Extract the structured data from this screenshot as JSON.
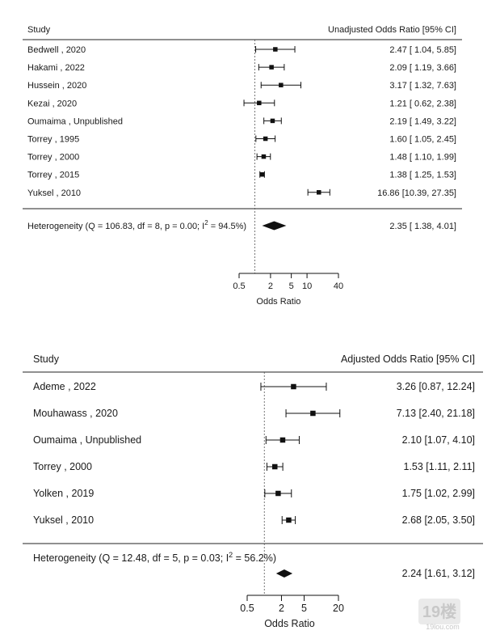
{
  "chart_data": [
    {
      "type": "forest",
      "header_study": "Study",
      "header_effect": "Unadjusted Odds Ratio [95% CI]",
      "xlabel": "Odds Ratio",
      "x_scale": "log",
      "ticks": [
        "0.5",
        "2",
        "5",
        "10",
        "40"
      ],
      "tick_values": [
        0.5,
        2,
        5,
        10,
        40
      ],
      "reference_line": 1,
      "studies": [
        {
          "label": "Bedwell , 2020",
          "or": 2.47,
          "lo": 1.04,
          "hi": 5.85,
          "text": "2.47 [ 1.04,  5.85]"
        },
        {
          "label": "Hakami , 2022",
          "or": 2.09,
          "lo": 1.19,
          "hi": 3.66,
          "text": "2.09 [ 1.19,  3.66]"
        },
        {
          "label": "Hussein , 2020",
          "or": 3.17,
          "lo": 1.32,
          "hi": 7.63,
          "text": "3.17 [ 1.32,  7.63]"
        },
        {
          "label": "Kezai , 2020",
          "or": 1.21,
          "lo": 0.62,
          "hi": 2.38,
          "text": "1.21 [ 0.62,  2.38]"
        },
        {
          "label": "Oumaima , Unpublished",
          "or": 2.19,
          "lo": 1.49,
          "hi": 3.22,
          "text": "2.19 [ 1.49,  3.22]"
        },
        {
          "label": "Torrey , 1995",
          "or": 1.6,
          "lo": 1.05,
          "hi": 2.45,
          "text": "1.60 [ 1.05,  2.45]"
        },
        {
          "label": "Torrey , 2000",
          "or": 1.48,
          "lo": 1.1,
          "hi": 1.99,
          "text": "1.48 [ 1.10,  1.99]"
        },
        {
          "label": "Torrey , 2015",
          "or": 1.38,
          "lo": 1.25,
          "hi": 1.53,
          "text": "1.38 [ 1.25,  1.53]"
        },
        {
          "label": "Yuksel , 2010",
          "or": 16.86,
          "lo": 10.39,
          "hi": 27.35,
          "text": "16.86 [10.39, 27.35]"
        }
      ],
      "pooled": {
        "label_prefix": "Heterogeneity (Q = 106.83, df = 8, p = 0.00; I",
        "label_sup": "2",
        "label_suffix": " = 94.5%)",
        "or": 2.35,
        "lo": 1.38,
        "hi": 4.01,
        "text": "2.35 [ 1.38,  4.01]"
      }
    },
    {
      "type": "forest",
      "header_study": "Study",
      "header_effect": "Adjusted Odds Ratio [95% CI]",
      "xlabel": "Odds Ratio",
      "x_scale": "log",
      "ticks": [
        "0.5",
        "2",
        "5",
        "20"
      ],
      "tick_values": [
        0.5,
        2,
        5,
        20
      ],
      "reference_line": 1,
      "studies": [
        {
          "label": "Ademe , 2022",
          "or": 3.26,
          "lo": 0.87,
          "hi": 12.24,
          "text": "3.26 [0.87, 12.24]"
        },
        {
          "label": "Mouhawass , 2020",
          "or": 7.13,
          "lo": 2.4,
          "hi": 21.18,
          "text": "7.13 [2.40, 21.18]"
        },
        {
          "label": "Oumaima , Unpublished",
          "or": 2.1,
          "lo": 1.07,
          "hi": 4.1,
          "text": "2.10 [1.07, 4.10]"
        },
        {
          "label": "Torrey , 2000",
          "or": 1.53,
          "lo": 1.11,
          "hi": 2.11,
          "text": "1.53 [1.11, 2.11]"
        },
        {
          "label": "Yolken , 2019",
          "or": 1.75,
          "lo": 1.02,
          "hi": 2.99,
          "text": "1.75 [1.02, 2.99]"
        },
        {
          "label": "Yuksel , 2010",
          "or": 2.68,
          "lo": 2.05,
          "hi": 3.5,
          "text": "2.68 [2.05, 3.50]"
        }
      ],
      "pooled": {
        "label_prefix": "Heterogeneity (Q = 12.48, df = 5, p = 0.03; I",
        "label_sup": "2",
        "label_suffix": " = 56.2%)",
        "or": 2.24,
        "lo": 1.61,
        "hi": 3.12,
        "text": "2.24 [1.61, 3.12]"
      }
    }
  ],
  "watermark": {
    "brand": "19楼",
    "site": "19lou.com"
  }
}
